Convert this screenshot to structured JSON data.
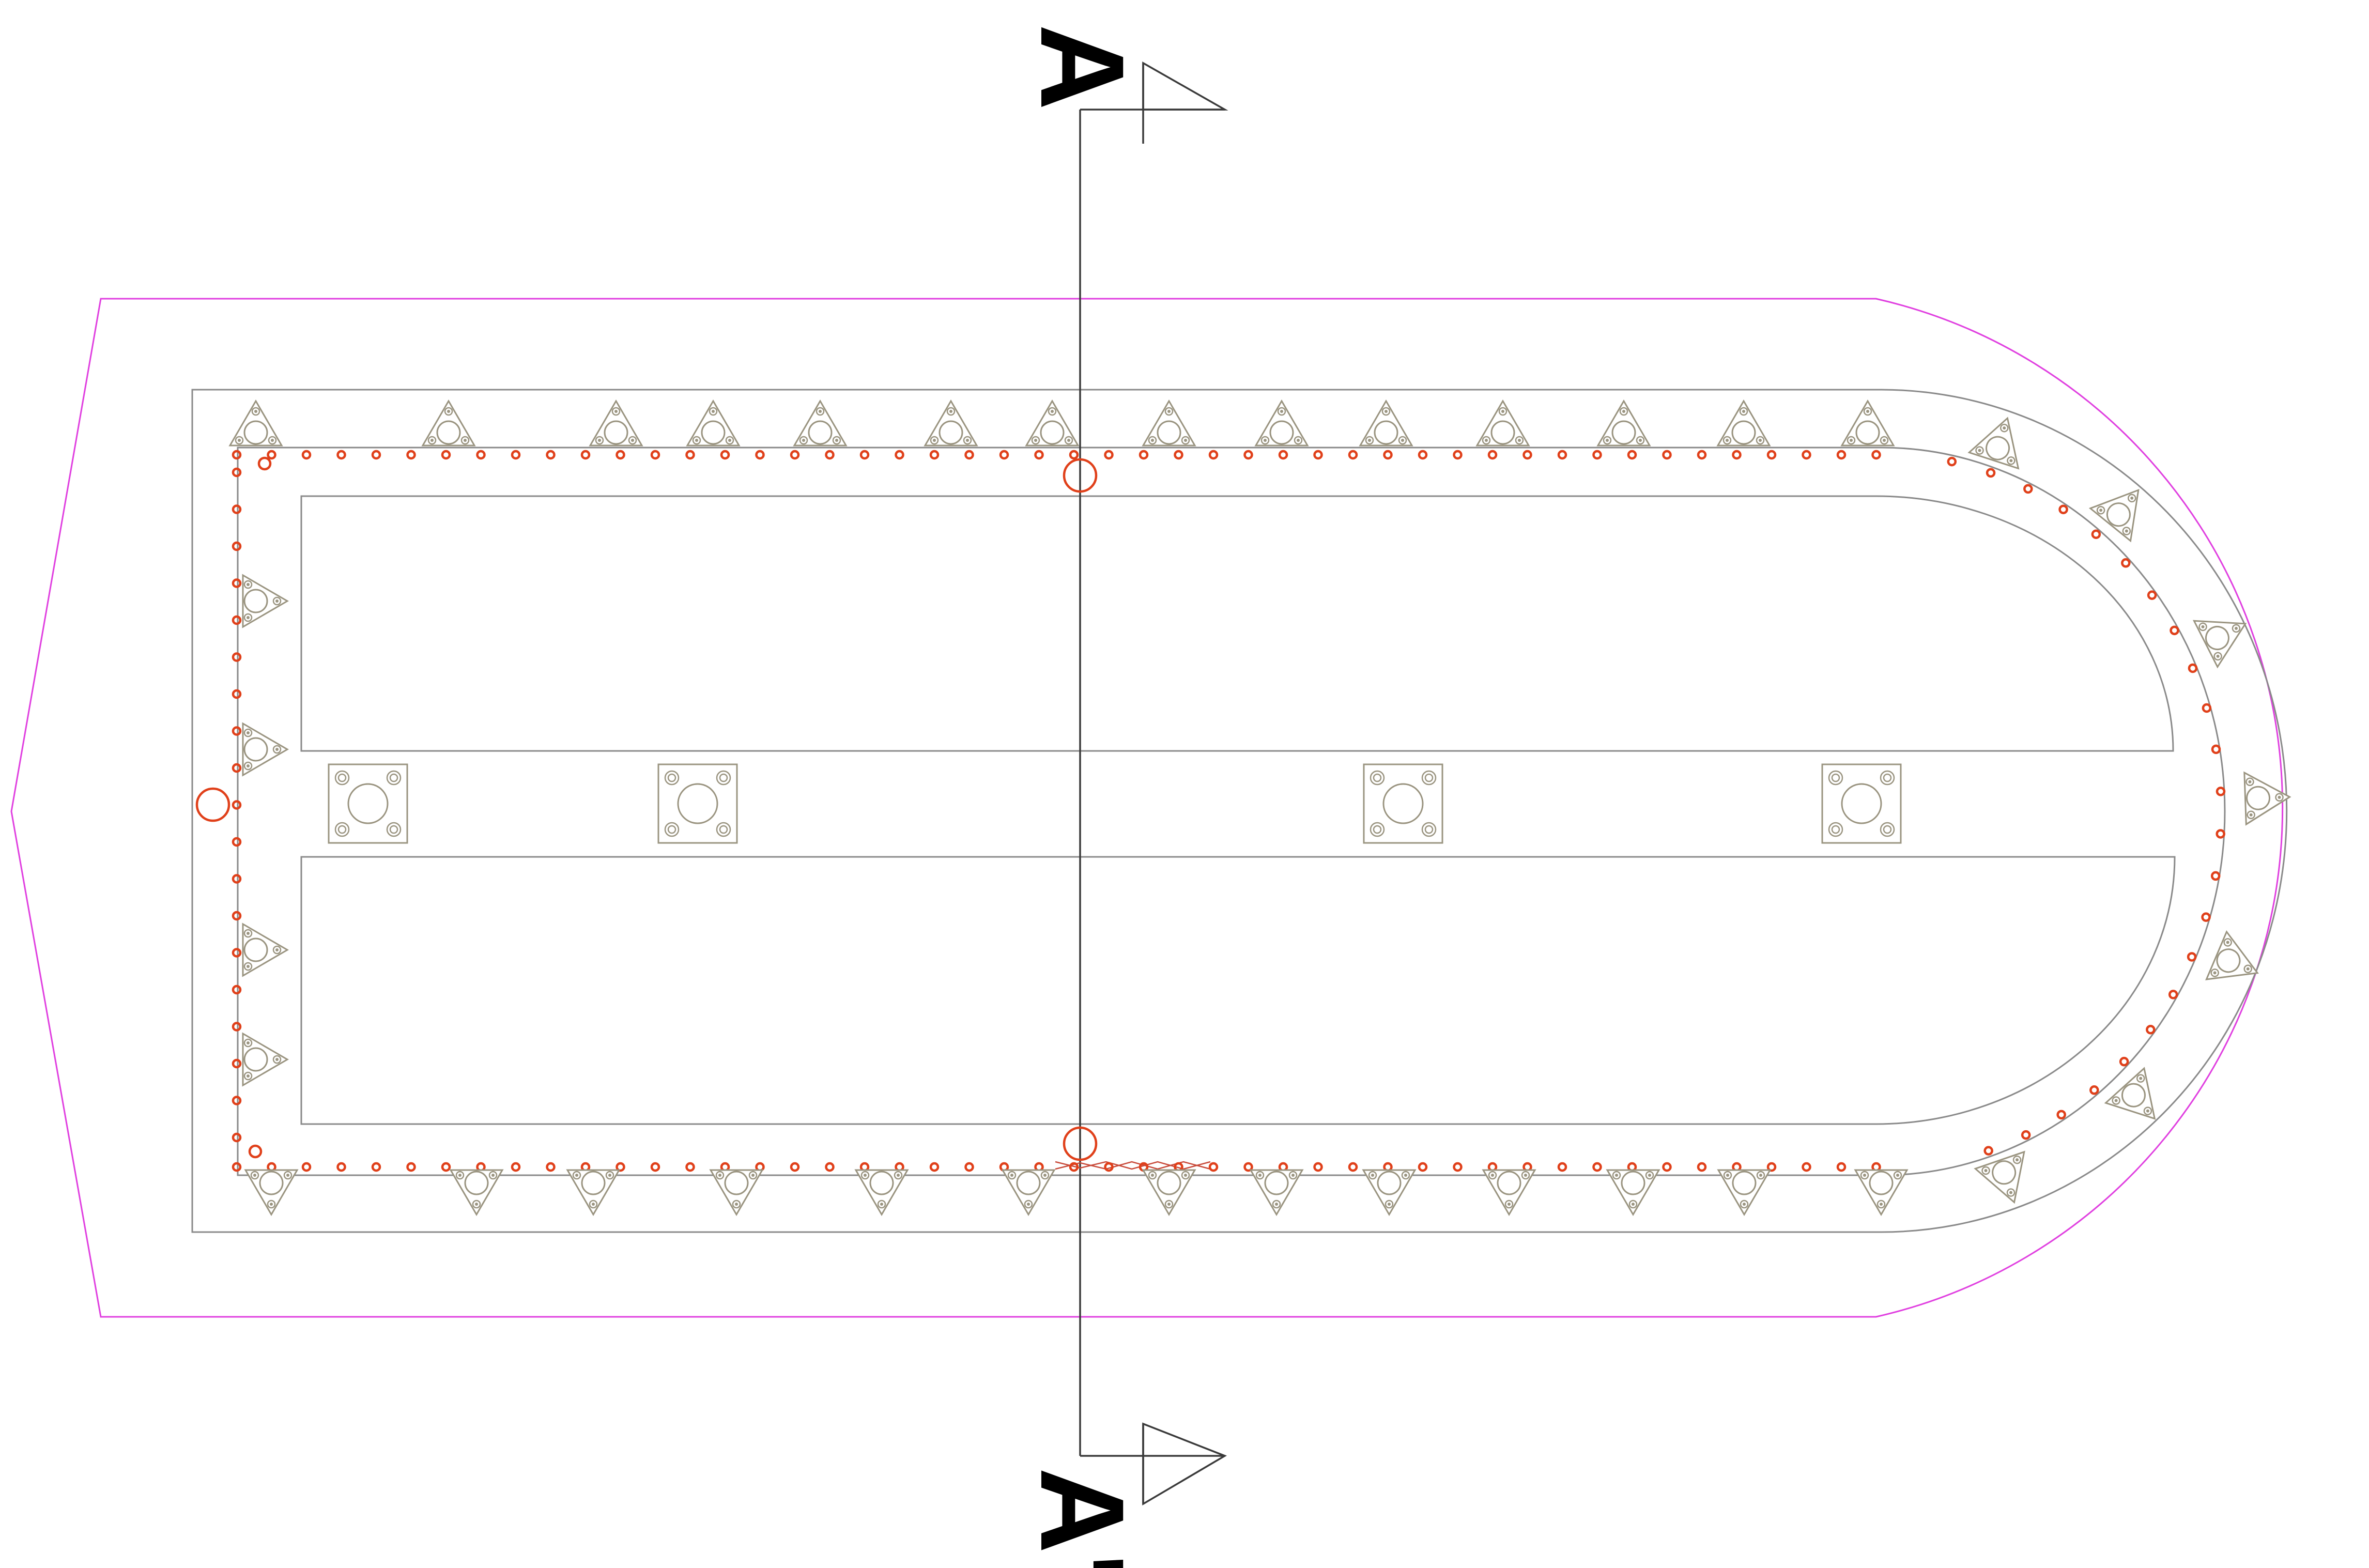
{
  "drawing": {
    "kind": "plan view of a rounded-end basin with section cut line",
    "section_labels": {
      "start": "A",
      "end": "A'"
    },
    "colors": {
      "boundary": "#e040e0",
      "wall": "#8a8a8a",
      "cut_line": "#3a3a3a",
      "anchor_hole": "#e0401a",
      "bracket": "#9a9480",
      "text": "#000000"
    },
    "components": {
      "triangular_brackets": {
        "icon": "triangle-bracket-icon",
        "count": 45
      },
      "square_bases": {
        "icon": "square-base-icon",
        "count": 4
      },
      "anchor_holes": {
        "icon": "small-circle-icon",
        "count": "many"
      },
      "pipe_penetrations": {
        "icon": "circle-marker-icon",
        "count": 3
      }
    }
  }
}
